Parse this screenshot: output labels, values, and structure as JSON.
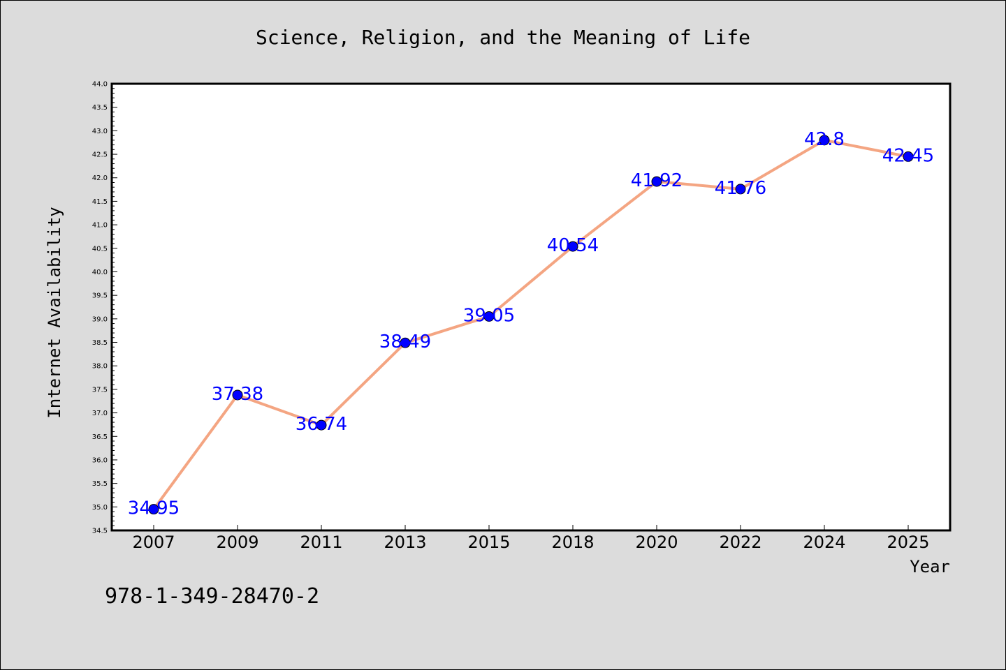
{
  "chart_data": {
    "type": "line",
    "title": "Science, Religion, and the Meaning of Life",
    "xlabel": "Year",
    "ylabel": "Internet Availability",
    "categories": [
      "2007",
      "2009",
      "2011",
      "2013",
      "2015",
      "2018",
      "2020",
      "2022",
      "2024",
      "2025"
    ],
    "series": [
      {
        "values": [
          34.95,
          37.38,
          36.74,
          38.49,
          39.05,
          40.54,
          41.92,
          41.76,
          42.8,
          42.45
        ],
        "data_labels": [
          "34.95",
          "37.38",
          "36.74",
          "38.49",
          "39.05",
          "40.54",
          "41.92",
          "41.76",
          "42.8",
          "42.45"
        ]
      }
    ],
    "ylim": [
      34.5,
      44.0
    ],
    "yticks": [
      "34.5",
      "35.0",
      "35.5",
      "36.0",
      "36.5",
      "37.0",
      "37.5",
      "38.0",
      "38.5",
      "39.0",
      "39.5",
      "40.0",
      "40.5",
      "41.0",
      "41.5",
      "42.0",
      "42.5",
      "43.0",
      "43.5",
      "44.0"
    ],
    "grid": false,
    "colors": {
      "background": "#dcdcdc",
      "plot_area": "#ffffff",
      "line": "#f4a582",
      "marker": "#0000ff",
      "data_label": "#0000ff"
    }
  },
  "annotation": "978-1-349-28470-2"
}
